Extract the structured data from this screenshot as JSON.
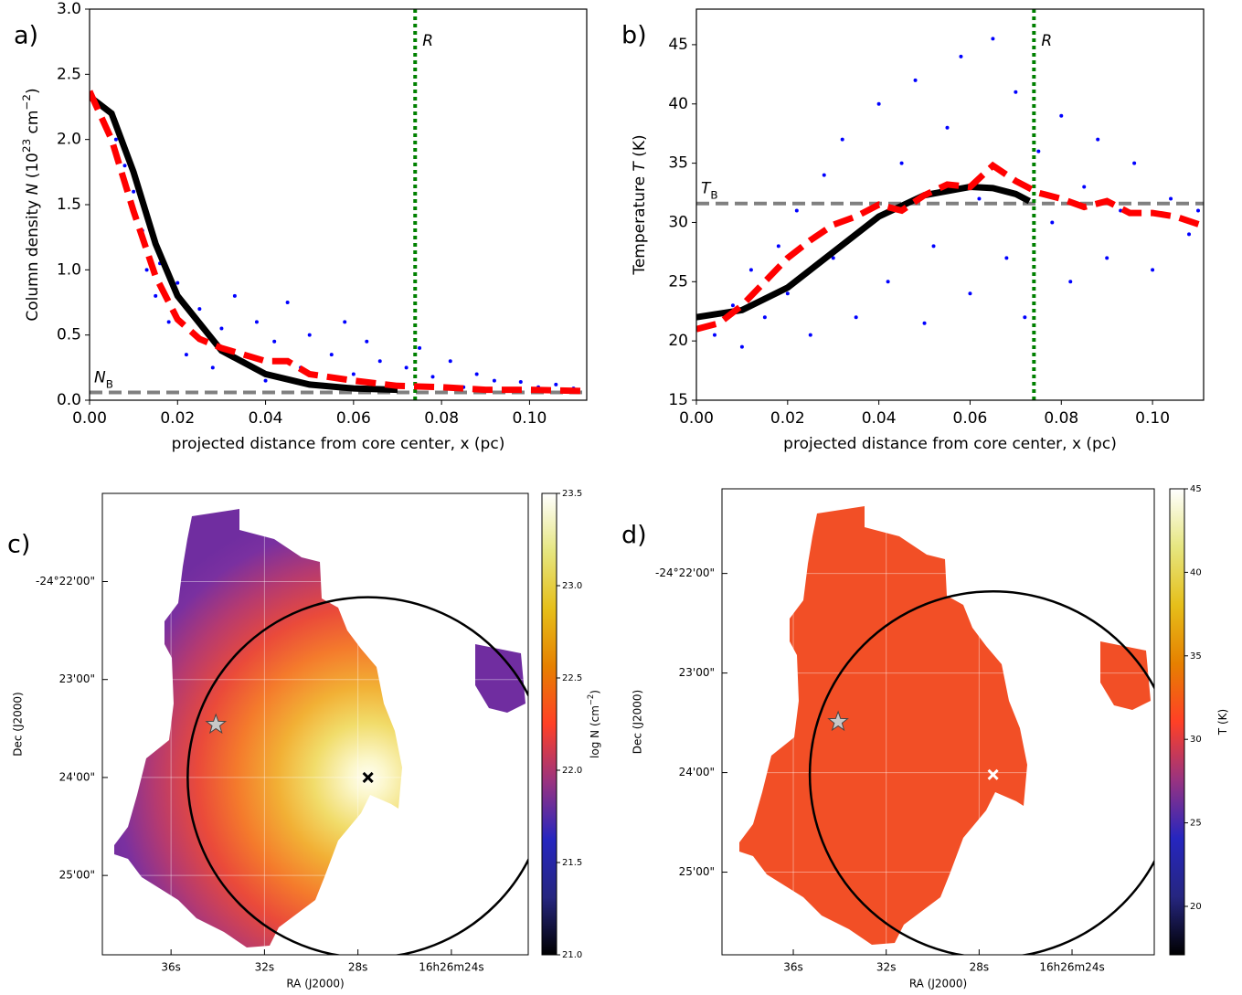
{
  "chart_data": [
    {
      "type": "scatter",
      "label": "a)",
      "xlabel": "projected distance from core center, x (pc)",
      "ylabel": [
        {
          "text": "Column density "
        },
        {
          "text": "N",
          "style": "italic"
        },
        {
          "text": " (10"
        },
        {
          "text": "23",
          "style": "sup"
        },
        {
          "text": " cm"
        },
        {
          "text": "−2",
          "style": "sup"
        },
        {
          "text": ")"
        }
      ],
      "xlim": [
        0,
        0.113
      ],
      "ylim": [
        0,
        3
      ],
      "xticks": [
        {
          "value": 0,
          "label": "0.00"
        },
        {
          "value": 0.02,
          "label": "0.02"
        },
        {
          "value": 0.04,
          "label": "0.04"
        },
        {
          "value": 0.06,
          "label": "0.06"
        },
        {
          "value": 0.08,
          "label": "0.08"
        },
        {
          "value": 0.1,
          "label": "0.10"
        }
      ],
      "yticks": [
        {
          "value": 0,
          "label": "0.0"
        },
        {
          "value": 0.5,
          "label": "0.5"
        },
        {
          "value": 1,
          "label": "1.0"
        },
        {
          "value": 1.5,
          "label": "1.5"
        },
        {
          "value": 2,
          "label": "2.0"
        },
        {
          "value": 2.5,
          "label": "2.5"
        },
        {
          "value": 3,
          "label": "3.0"
        }
      ],
      "points": {
        "color": "#0000ff",
        "x": [
          0.006,
          0.008,
          0.01,
          0.012,
          0.013,
          0.015,
          0.016,
          0.018,
          0.02,
          0.022,
          0.025,
          0.028,
          0.03,
          0.033,
          0.035,
          0.038,
          0.04,
          0.042,
          0.045,
          0.048,
          0.05,
          0.053,
          0.055,
          0.058,
          0.06,
          0.063,
          0.066,
          0.07,
          0.072,
          0.075,
          0.078,
          0.082,
          0.085,
          0.088,
          0.092,
          0.095,
          0.098,
          0.102,
          0.106,
          0.11
        ],
        "y": [
          2.0,
          1.8,
          1.6,
          1.3,
          1.0,
          0.8,
          1.05,
          0.6,
          0.9,
          0.35,
          0.7,
          0.25,
          0.55,
          0.8,
          0.3,
          0.6,
          0.15,
          0.45,
          0.75,
          0.25,
          0.5,
          0.12,
          0.35,
          0.6,
          0.2,
          0.45,
          0.3,
          0.12,
          0.25,
          0.4,
          0.18,
          0.3,
          0.1,
          0.2,
          0.15,
          0.08,
          0.14,
          0.1,
          0.12,
          0.09
        ]
      },
      "model": {
        "color": "#000000",
        "x": [
          0,
          0.005,
          0.01,
          0.015,
          0.02,
          0.03,
          0.04,
          0.05,
          0.06,
          0.07
        ],
        "y": [
          2.33,
          2.2,
          1.75,
          1.2,
          0.8,
          0.38,
          0.2,
          0.12,
          0.09,
          0.08
        ]
      },
      "profile": {
        "color": "#ff0000",
        "x": [
          0,
          0.005,
          0.01,
          0.015,
          0.02,
          0.025,
          0.03,
          0.035,
          0.04,
          0.045,
          0.05,
          0.06,
          0.07,
          0.08,
          0.09,
          0.1,
          0.113
        ],
        "y": [
          2.37,
          2.0,
          1.45,
          0.95,
          0.62,
          0.47,
          0.4,
          0.35,
          0.3,
          0.3,
          0.2,
          0.15,
          0.11,
          0.1,
          0.08,
          0.08,
          0.07
        ]
      },
      "background": {
        "value": 0.06,
        "color": "#808080",
        "label": [
          {
            "text": "N",
            "style": "italic"
          },
          {
            "text": "B",
            "style": "sub"
          }
        ]
      },
      "radius": {
        "value": 0.074,
        "color": "#008000",
        "label": [
          {
            "text": "R",
            "style": "italic"
          }
        ]
      }
    },
    {
      "type": "scatter",
      "label": "b)",
      "xlabel": "projected distance from core center, x (pc)",
      "ylabel": [
        {
          "text": "Temperature "
        },
        {
          "text": "T",
          "style": "italic"
        },
        {
          "text": " (K)"
        }
      ],
      "xlim": [
        0,
        0.1112
      ],
      "ylim": [
        15,
        48
      ],
      "xticks": [
        {
          "value": 0,
          "label": "0.00"
        },
        {
          "value": 0.02,
          "label": "0.02"
        },
        {
          "value": 0.04,
          "label": "0.04"
        },
        {
          "value": 0.06,
          "label": "0.06"
        },
        {
          "value": 0.08,
          "label": "0.08"
        },
        {
          "value": 0.1,
          "label": "0.10"
        }
      ],
      "yticks": [
        15,
        20,
        25,
        30,
        35,
        40,
        45
      ],
      "points": {
        "color": "#0000ff",
        "x": [
          0.004,
          0.008,
          0.01,
          0.012,
          0.015,
          0.018,
          0.02,
          0.022,
          0.025,
          0.028,
          0.03,
          0.032,
          0.035,
          0.038,
          0.04,
          0.042,
          0.045,
          0.048,
          0.05,
          0.052,
          0.055,
          0.058,
          0.06,
          0.062,
          0.065,
          0.068,
          0.07,
          0.072,
          0.075,
          0.078,
          0.08,
          0.082,
          0.085,
          0.088,
          0.09,
          0.093,
          0.096,
          0.1,
          0.104,
          0.108,
          0.11
        ],
        "y": [
          20.5,
          23,
          19.5,
          26,
          22,
          28,
          24,
          31,
          20.5,
          34,
          27,
          37,
          22,
          30,
          40,
          25,
          35,
          42,
          21.5,
          28,
          38,
          44,
          24,
          32,
          45.5,
          27,
          41,
          22,
          36,
          30,
          39,
          25,
          33,
          37,
          27,
          31,
          35,
          26,
          32,
          29,
          31
        ]
      },
      "model": {
        "color": "#000000",
        "x": [
          0,
          0.01,
          0.02,
          0.03,
          0.04,
          0.05,
          0.06,
          0.065,
          0.07,
          0.073
        ],
        "y": [
          22,
          22.6,
          24.5,
          27.5,
          30.5,
          32.3,
          33,
          32.9,
          32.4,
          31.8
        ]
      },
      "profile": {
        "color": "#ff0000",
        "x": [
          0,
          0.005,
          0.01,
          0.015,
          0.02,
          0.025,
          0.03,
          0.035,
          0.04,
          0.045,
          0.05,
          0.055,
          0.06,
          0.065,
          0.07,
          0.075,
          0.08,
          0.085,
          0.09,
          0.095,
          0.1,
          0.105,
          0.1112
        ],
        "y": [
          21,
          21.5,
          23,
          25,
          27,
          28.5,
          29.8,
          30.5,
          31.5,
          31,
          32.3,
          33.2,
          33,
          34.8,
          33.5,
          32.5,
          32,
          31.3,
          31.8,
          30.8,
          30.8,
          30.5,
          29.7
        ]
      },
      "background": {
        "value": 31.6,
        "color": "#808080",
        "label": [
          {
            "text": "T",
            "style": "italic"
          },
          {
            "text": "B",
            "style": "sub"
          }
        ]
      },
      "radius": {
        "value": 0.074,
        "color": "#008000",
        "label": [
          {
            "text": "R",
            "style": "italic"
          }
        ]
      }
    },
    {
      "type": "map",
      "label": "c)",
      "xlabel": "RA (J2000)",
      "ylabel": "Dec (J2000)",
      "xlim": [
        38.94,
        20.71
      ],
      "ylim": [
        25.81,
        21.1
      ],
      "xticks": [
        {
          "value": 36,
          "label": "36s"
        },
        {
          "value": 32,
          "label": "32s"
        },
        {
          "value": 28,
          "label": "28s"
        },
        {
          "value": 24,
          "label": "16h26m24s"
        }
      ],
      "yticks": [
        {
          "value": 22,
          "label": "-24°22'00\""
        },
        {
          "value": 23,
          "label": "23'00\""
        },
        {
          "value": 24,
          "label": "24'00\""
        },
        {
          "value": 25,
          "label": "25'00\""
        }
      ],
      "star": {
        "x": 34.08,
        "y": 23.46
      },
      "peak": {
        "x": 27.57,
        "y": 24.0,
        "color": "#000000"
      },
      "circle": {
        "x": 27.57,
        "y": 24.0,
        "radius": 1.84
      },
      "colorbar": {
        "label": [
          {
            "text": "log N (cm"
          },
          {
            "text": "−2",
            "style": "sup"
          },
          {
            "text": ")"
          }
        ],
        "lim": [
          21,
          23.5
        ],
        "ticks": [
          {
            "value": 21,
            "label": "21.0"
          },
          {
            "value": 21.5,
            "label": "21.5"
          },
          {
            "value": 22,
            "label": "22.0"
          },
          {
            "value": 22.5,
            "label": "22.5"
          },
          {
            "value": 23,
            "label": "23.0"
          },
          {
            "value": 23.5,
            "label": "23.5"
          }
        ]
      }
    },
    {
      "type": "map",
      "label": "d)",
      "xlabel": "RA (J2000)",
      "ylabel": "Dec (J2000)",
      "xlim": [
        39.07,
        20.46
      ],
      "ylim": [
        25.83,
        21.15
      ],
      "xticks": [
        {
          "value": 36,
          "label": "36s"
        },
        {
          "value": 32,
          "label": "32s"
        },
        {
          "value": 28,
          "label": "28s"
        },
        {
          "value": 24,
          "label": "16h26m24s"
        }
      ],
      "yticks": [
        {
          "value": 22,
          "label": "-24°22'00\""
        },
        {
          "value": 23,
          "label": "23'00\""
        },
        {
          "value": 24,
          "label": "24'00\""
        },
        {
          "value": 25,
          "label": "25'00\""
        }
      ],
      "star": {
        "x": 34.07,
        "y": 23.49
      },
      "peak": {
        "x": 27.4,
        "y": 24.02,
        "color": "#ffffff"
      },
      "circle": {
        "x": 27.4,
        "y": 24.02,
        "radius": 1.84
      },
      "colorbar": {
        "label": [
          {
            "text": "T (K)"
          }
        ],
        "lim": [
          17.1,
          45
        ],
        "ticks": [
          20,
          25,
          30,
          35,
          40,
          45
        ]
      }
    }
  ]
}
